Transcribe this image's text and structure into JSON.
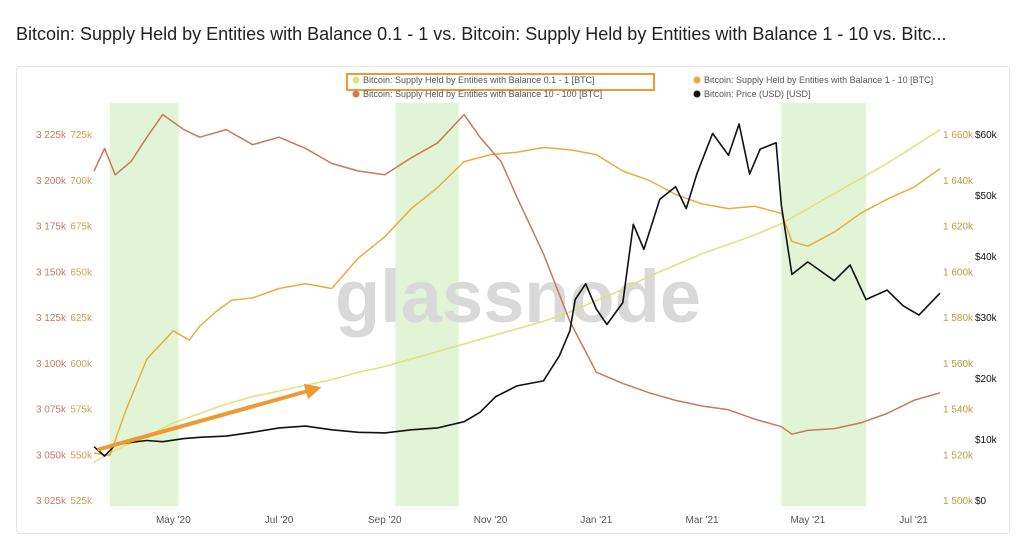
{
  "page": {
    "title": "Bitcoin: Supply Held by Entities with Balance 0.1 - 1 vs. Bitcoin: Supply Held by Entities with Balance 1 - 10 vs. Bitc..."
  },
  "watermark": "glassnode",
  "colors": {
    "s01": "#dfe27a",
    "s110": "#e7ad3c",
    "s10100": "#c9775d",
    "price": "#111111",
    "shade": "#d8f0c8",
    "arrow": "#ee9a34",
    "highlight": "#ee9a34"
  },
  "chart_data": {
    "type": "line",
    "title": "Bitcoin: Supply Held by Entities with Balance 0.1 - 1 vs. Bitcoin: Supply Held by Entities with Balance 1 - 10 vs. Bitc...",
    "x_ticks": [
      "May '20",
      "Jul '20",
      "Sep '20",
      "Nov '20",
      "Jan '21",
      "Mar '21",
      "May '21",
      "Jul '21"
    ],
    "x_range_months": [
      0,
      16
    ],
    "x_tick_positions_months": [
      1.5,
      3.5,
      5.5,
      7.5,
      9.5,
      11.5,
      13.5,
      15.5
    ],
    "axes": {
      "y_left_outer": {
        "ticks": [
          "3 225k",
          "3 200k",
          "3 175k",
          "3 150k",
          "3 125k",
          "3 100k",
          "3 075k",
          "3 050k",
          "3 025k"
        ],
        "range": [
          3025000,
          3225000
        ]
      },
      "y_left_inner": {
        "ticks": [
          "725k",
          "700k",
          "675k",
          "650k",
          "625k",
          "600k",
          "575k",
          "550k",
          "525k"
        ],
        "range": [
          525000,
          725000
        ]
      },
      "y_right_inner": {
        "ticks": [
          "1 660k",
          "1 640k",
          "1 620k",
          "1 600k",
          "1 580k",
          "1 560k",
          "1 540k",
          "1 520k",
          "1 500k"
        ],
        "range": [
          1500000,
          1660000
        ]
      },
      "y_right_outer": {
        "ticks": [
          "$60k",
          "$50k",
          "$40k",
          "$30k",
          "$20k",
          "$10k",
          "$0"
        ],
        "range": [
          0,
          60000
        ]
      }
    },
    "shaded_regions_months": [
      [
        0.3,
        1.6
      ],
      [
        5.7,
        6.9
      ],
      [
        13.0,
        14.6
      ]
    ],
    "annotation_arrow_months": {
      "from": [
        0.1,
        3052000
      ],
      "to": [
        4.3,
        3085000
      ],
      "axis": "y_left_outer"
    },
    "series": [
      {
        "name": "Bitcoin: Supply Held by Entities with Balance 0.1 - 1 [BTC]",
        "axis": "y_left_outer",
        "highlighted": true,
        "x": [
          0,
          0.3,
          0.6,
          1.0,
          1.5,
          2.0,
          2.5,
          3.0,
          3.5,
          4.0,
          4.5,
          5.0,
          5.5,
          6.0,
          6.5,
          7.0,
          7.5,
          8.0,
          8.5,
          9.0,
          9.5,
          10.0,
          10.5,
          11.0,
          11.5,
          12.0,
          12.5,
          13.0,
          13.5,
          14.0,
          14.5,
          15.0,
          15.5,
          16.0
        ],
        "values": [
          3045000,
          3050000,
          3054000,
          3059000,
          3066000,
          3071000,
          3076000,
          3080000,
          3083000,
          3086000,
          3089000,
          3093000,
          3096000,
          3100000,
          3104000,
          3108000,
          3112000,
          3116000,
          3120000,
          3125000,
          3131000,
          3137000,
          3144000,
          3150000,
          3156000,
          3161000,
          3166000,
          3172000,
          3180000,
          3188000,
          3196000,
          3204000,
          3213000,
          3222000
        ]
      },
      {
        "name": "Bitcoin: Supply Held by Entities with Balance 1 - 10 [BTC]",
        "axis": "y_right_inner",
        "x": [
          0,
          0.3,
          0.6,
          1.0,
          1.5,
          1.8,
          2.0,
          2.3,
          2.6,
          3.0,
          3.5,
          4.0,
          4.5,
          5.0,
          5.5,
          6.0,
          6.5,
          7.0,
          7.5,
          8.0,
          8.5,
          9.0,
          9.5,
          10.0,
          10.5,
          11.0,
          11.5,
          12.0,
          12.5,
          13.0,
          13.2,
          13.5,
          14.0,
          14.5,
          15.0,
          15.5,
          16.0
        ],
        "values": [
          1520000,
          1519000,
          1538000,
          1560000,
          1572000,
          1568000,
          1574000,
          1580000,
          1585000,
          1586000,
          1590000,
          1592000,
          1590000,
          1603000,
          1612000,
          1624000,
          1633000,
          1644000,
          1647000,
          1648000,
          1650000,
          1649000,
          1647000,
          1640000,
          1636000,
          1630000,
          1626000,
          1624000,
          1625000,
          1622000,
          1610000,
          1608000,
          1614000,
          1622000,
          1628000,
          1633000,
          1641000
        ]
      },
      {
        "name": "Bitcoin: Supply Held by Entities with Balance 10 - 100 [BTC]",
        "axis": "y_left_inner",
        "x": [
          0,
          0.2,
          0.4,
          0.7,
          1.0,
          1.3,
          1.7,
          2.0,
          2.5,
          3.0,
          3.5,
          4.0,
          4.5,
          5.0,
          5.5,
          6.0,
          6.5,
          7.0,
          7.3,
          7.7,
          8.0,
          8.5,
          9.0,
          9.5,
          10.0,
          10.5,
          11.0,
          11.5,
          12.0,
          12.5,
          13.0,
          13.2,
          13.5,
          14.0,
          14.5,
          15.0,
          15.5,
          16.0
        ],
        "values": [
          700000,
          712000,
          698000,
          705000,
          718000,
          730000,
          722000,
          718000,
          722000,
          714000,
          718000,
          712000,
          704000,
          700000,
          698000,
          707000,
          715000,
          730000,
          718000,
          705000,
          686000,
          656000,
          620000,
          593000,
          587000,
          582000,
          578000,
          575000,
          573000,
          568000,
          564000,
          560000,
          562000,
          563000,
          566000,
          571000,
          578000,
          582000
        ]
      },
      {
        "name": "Bitcoin: Price (USD) [USD]",
        "axis": "y_right_outer",
        "x": [
          0,
          0.2,
          0.4,
          0.7,
          1.0,
          1.3,
          1.7,
          2.0,
          2.5,
          3.0,
          3.5,
          4.0,
          4.5,
          5.0,
          5.5,
          6.0,
          6.5,
          7.0,
          7.3,
          7.6,
          8.0,
          8.5,
          8.8,
          9.0,
          9.1,
          9.3,
          9.5,
          9.7,
          10.0,
          10.2,
          10.4,
          10.7,
          11.0,
          11.2,
          11.4,
          11.7,
          12.0,
          12.2,
          12.4,
          12.6,
          12.9,
          13.0,
          13.2,
          13.5,
          14.0,
          14.3,
          14.6,
          15.0,
          15.3,
          15.6,
          16.0
        ],
        "values": [
          8500,
          7000,
          8800,
          9200,
          9500,
          9300,
          9800,
          10000,
          10200,
          10800,
          11500,
          11800,
          11200,
          10800,
          10700,
          11200,
          11500,
          12500,
          14000,
          16500,
          18200,
          19000,
          23000,
          27000,
          32000,
          34500,
          30500,
          28000,
          31500,
          44000,
          40000,
          48000,
          50000,
          46500,
          52000,
          58500,
          55000,
          60000,
          52000,
          56000,
          57000,
          47000,
          36000,
          38000,
          35000,
          37500,
          32000,
          33500,
          31000,
          29500,
          33000
        ]
      }
    ]
  }
}
